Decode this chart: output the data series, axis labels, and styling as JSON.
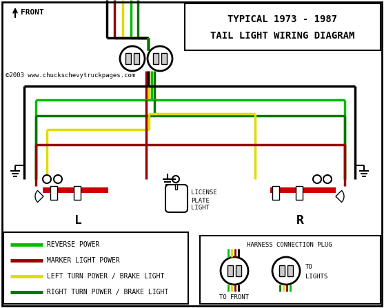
{
  "title1": "TYPICAL 1973 - 1987",
  "title2": "TAIL LIGHT WIRING DIAGRAM",
  "copyright": "©2003 www.chuckschevytruckpages.com",
  "bg_color": "#ffffff",
  "colors": {
    "bright_green": "#00bb00",
    "dark_green": "#007700",
    "dark_red": "#990000",
    "yellow": "#dddd00",
    "black": "#000000",
    "white": "#ffffff",
    "gray": "#aaaaaa",
    "red_housing": "#cc0000",
    "lt_gray": "#cccccc"
  },
  "legend_items": [
    {
      "color": "#00bb00",
      "label": "REVERSE POWER"
    },
    {
      "color": "#990000",
      "label": "MARKER LIGHT POWER"
    },
    {
      "color": "#dddd00",
      "label": "LEFT TURN POWER / BRAKE LIGHT"
    },
    {
      "color": "#007700",
      "label": "RIGHT TURN POWER / BRAKE LIGHT"
    }
  ]
}
